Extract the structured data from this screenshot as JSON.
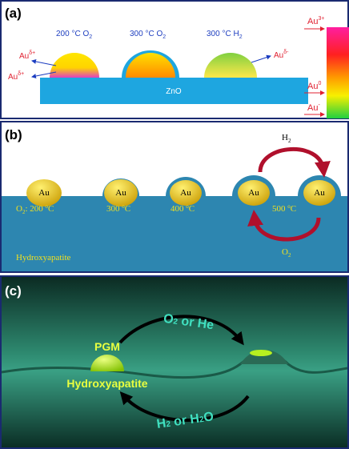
{
  "panel_a": {
    "label": "(a)",
    "conditions": [
      {
        "temp": "200 °C O",
        "sub": "2"
      },
      {
        "temp": "300 °C O",
        "sub": "2"
      },
      {
        "temp": "300 °C H",
        "sub": "2"
      }
    ],
    "left_labels": [
      {
        "base": "Au",
        "sup": "δ+"
      },
      {
        "base": "Au",
        "sup": "δ+"
      }
    ],
    "right_label": {
      "base": "Au",
      "sup": "δ-"
    },
    "support": "ZnO",
    "scale_labels": [
      {
        "base": "Au",
        "sup": "3+"
      },
      {
        "base": "Au",
        "sup": "0"
      },
      {
        "base": "Au",
        "sup": "-"
      }
    ]
  },
  "panel_b": {
    "label": "(b)",
    "particle": "Au",
    "temps": [
      {
        "prefix": "O",
        "sub": "2",
        "rest": ": 200 ",
        "deg": "o",
        "unit": "C"
      },
      {
        "prefix": "",
        "sub": "",
        "rest": "300 ",
        "deg": "o",
        "unit": "C"
      },
      {
        "prefix": "",
        "sub": "",
        "rest": "400 ",
        "deg": "o",
        "unit": "C"
      },
      {
        "prefix": "",
        "sub": "",
        "rest": "500 ",
        "deg": "o",
        "unit": "C"
      }
    ],
    "top_gas": {
      "base": "H",
      "sub": "2"
    },
    "bottom_gas": {
      "base": "O",
      "sub": "2"
    },
    "support": "Hydroxyapatite"
  },
  "panel_c": {
    "label": "(c)",
    "metal": "PGM",
    "support": "Hydroxyapatite",
    "top_gas": {
      "a": "O",
      "a_sub": "2",
      "b": " or He"
    },
    "bottom_gas": {
      "a": "H",
      "a_sub": "2",
      "b": " or H",
      "b_sub": "2",
      "c": "O"
    }
  }
}
